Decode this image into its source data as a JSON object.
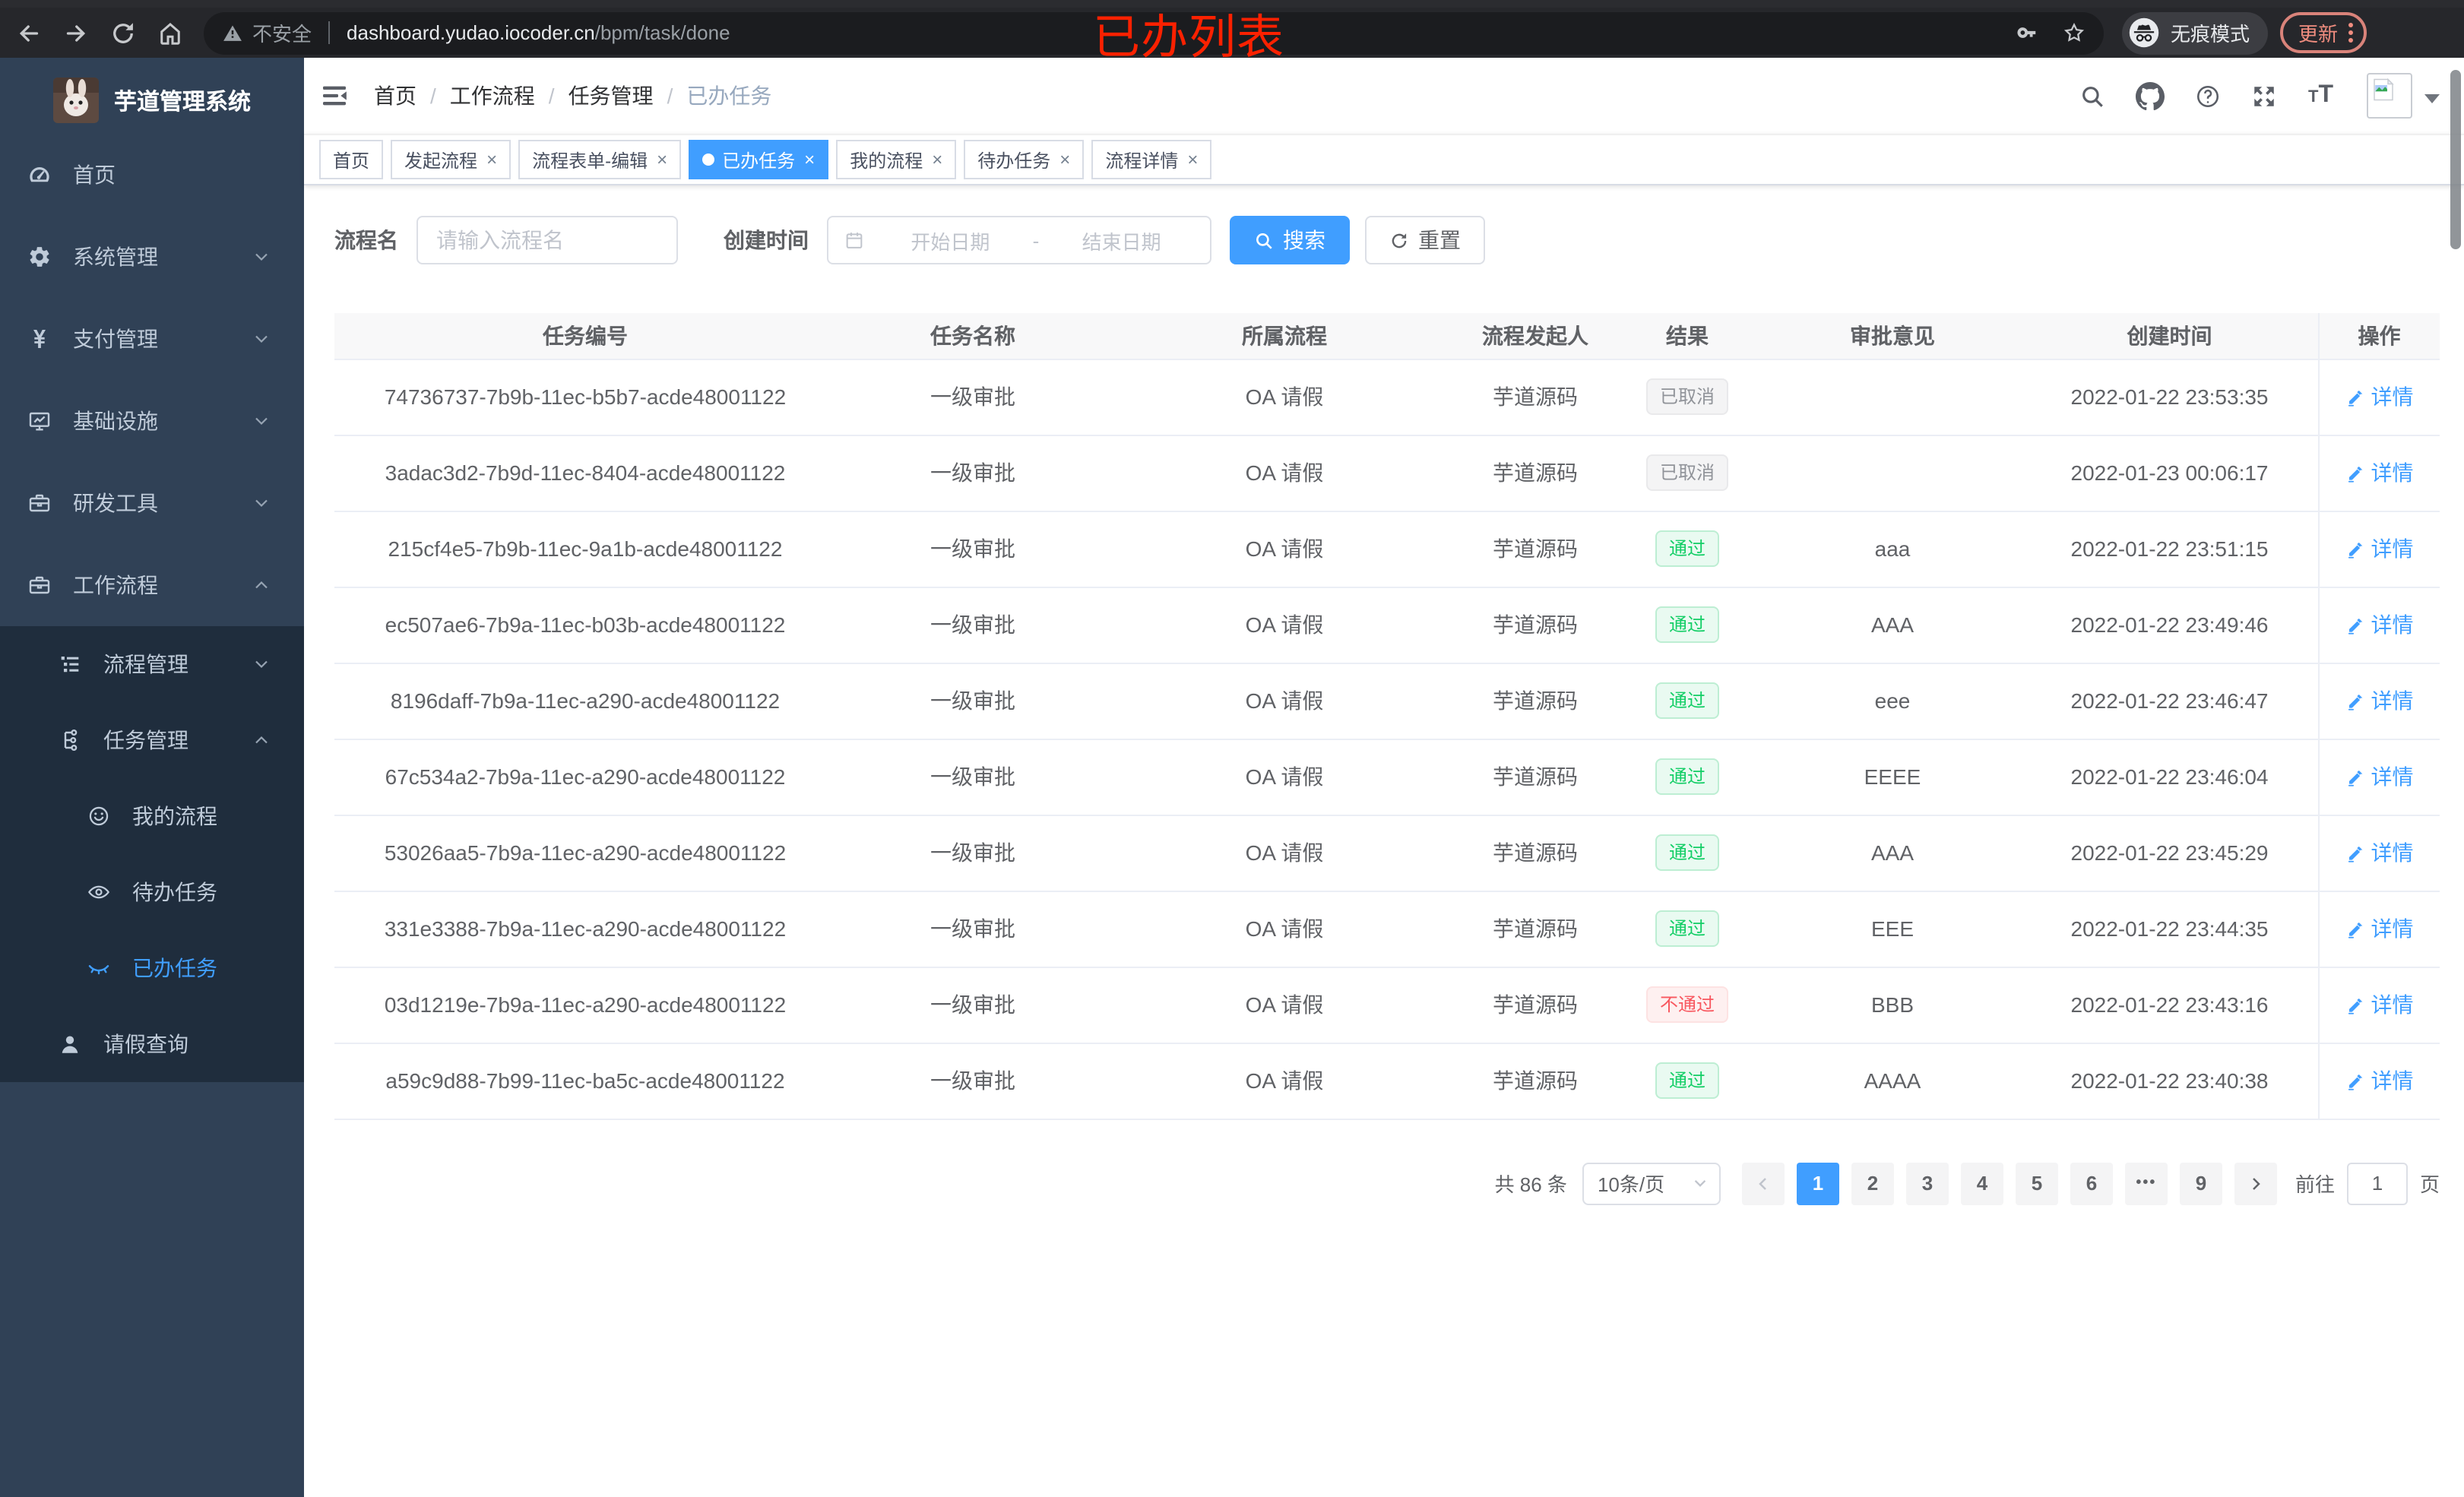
{
  "browser": {
    "security_label": "不安全",
    "url_host": "dashboard.yudao.iocoder.cn",
    "url_path": "/bpm/task/done",
    "incognito_label": "无痕模式",
    "update_label": "更新"
  },
  "annotation": {
    "title": "已办列表"
  },
  "sidebar": {
    "logo_title": "芋道管理系统",
    "menu": [
      {
        "key": "home",
        "label": "首页",
        "icon": "dashboard-icon"
      },
      {
        "key": "system",
        "label": "系统管理",
        "icon": "gear-icon",
        "expandable": true
      },
      {
        "key": "payment",
        "label": "支付管理",
        "icon": "yen-icon",
        "expandable": true
      },
      {
        "key": "infra",
        "label": "基础设施",
        "icon": "monitor-icon",
        "expandable": true
      },
      {
        "key": "devtools",
        "label": "研发工具",
        "icon": "toolbox-icon",
        "expandable": true
      },
      {
        "key": "workflow",
        "label": "工作流程",
        "icon": "briefcase-icon",
        "expandable": true,
        "expanded": true,
        "children": [
          {
            "key": "process-mgmt",
            "label": "流程管理",
            "icon": "list-tree-icon",
            "expandable": true
          },
          {
            "key": "task-mgmt",
            "label": "任务管理",
            "icon": "flow-icon",
            "expandable": true,
            "expanded": true,
            "children": [
              {
                "key": "my-process",
                "label": "我的流程",
                "icon": "face-icon"
              },
              {
                "key": "todo-task",
                "label": "待办任务",
                "icon": "eye-open-icon"
              },
              {
                "key": "done-task",
                "label": "已办任务",
                "icon": "eye-closed-icon",
                "active": true
              }
            ]
          },
          {
            "key": "leave-query",
            "label": "请假查询",
            "icon": "user-icon"
          }
        ]
      }
    ]
  },
  "breadcrumb": [
    "首页",
    "工作流程",
    "任务管理",
    "已办任务"
  ],
  "tabs": [
    {
      "label": "首页",
      "closable": false,
      "active": false
    },
    {
      "label": "发起流程",
      "closable": true,
      "active": false
    },
    {
      "label": "流程表单-编辑",
      "closable": true,
      "active": false
    },
    {
      "label": "已办任务",
      "closable": true,
      "active": true
    },
    {
      "label": "我的流程",
      "closable": true,
      "active": false
    },
    {
      "label": "待办任务",
      "closable": true,
      "active": false
    },
    {
      "label": "流程详情",
      "closable": true,
      "active": false
    }
  ],
  "filters": {
    "name_label": "流程名",
    "name_placeholder": "请输入流程名",
    "time_label": "创建时间",
    "start_placeholder": "开始日期",
    "range_separator": "-",
    "end_placeholder": "结束日期",
    "search_label": "搜索",
    "reset_label": "重置"
  },
  "table": {
    "columns": [
      "任务编号",
      "任务名称",
      "所属流程",
      "流程发起人",
      "结果",
      "审批意见",
      "创建时间",
      "操作"
    ],
    "detail_label": "详情",
    "rows": [
      {
        "id": "74736737-7b9b-11ec-b5b7-acde48001122",
        "name": "一级审批",
        "process": "OA 请假",
        "starter": "芋道源码",
        "result": "已取消",
        "result_type": "info",
        "comment": "",
        "time": "2022-01-22 23:53:35"
      },
      {
        "id": "3adac3d2-7b9d-11ec-8404-acde48001122",
        "name": "一级审批",
        "process": "OA 请假",
        "starter": "芋道源码",
        "result": "已取消",
        "result_type": "info",
        "comment": "",
        "time": "2022-01-23 00:06:17"
      },
      {
        "id": "215cf4e5-7b9b-11ec-9a1b-acde48001122",
        "name": "一级审批",
        "process": "OA 请假",
        "starter": "芋道源码",
        "result": "通过",
        "result_type": "success",
        "comment": "aaa",
        "time": "2022-01-22 23:51:15"
      },
      {
        "id": "ec507ae6-7b9a-11ec-b03b-acde48001122",
        "name": "一级审批",
        "process": "OA 请假",
        "starter": "芋道源码",
        "result": "通过",
        "result_type": "success",
        "comment": "AAA",
        "time": "2022-01-22 23:49:46"
      },
      {
        "id": "8196daff-7b9a-11ec-a290-acde48001122",
        "name": "一级审批",
        "process": "OA 请假",
        "starter": "芋道源码",
        "result": "通过",
        "result_type": "success",
        "comment": "eee",
        "time": "2022-01-22 23:46:47"
      },
      {
        "id": "67c534a2-7b9a-11ec-a290-acde48001122",
        "name": "一级审批",
        "process": "OA 请假",
        "starter": "芋道源码",
        "result": "通过",
        "result_type": "success",
        "comment": "EEEE",
        "time": "2022-01-22 23:46:04"
      },
      {
        "id": "53026aa5-7b9a-11ec-a290-acde48001122",
        "name": "一级审批",
        "process": "OA 请假",
        "starter": "芋道源码",
        "result": "通过",
        "result_type": "success",
        "comment": "AAA",
        "time": "2022-01-22 23:45:29"
      },
      {
        "id": "331e3388-7b9a-11ec-a290-acde48001122",
        "name": "一级审批",
        "process": "OA 请假",
        "starter": "芋道源码",
        "result": "通过",
        "result_type": "success",
        "comment": "EEE",
        "time": "2022-01-22 23:44:35"
      },
      {
        "id": "03d1219e-7b9a-11ec-a290-acde48001122",
        "name": "一级审批",
        "process": "OA 请假",
        "starter": "芋道源码",
        "result": "不通过",
        "result_type": "danger",
        "comment": "BBB",
        "time": "2022-01-22 23:43:16"
      },
      {
        "id": "a59c9d88-7b99-11ec-ba5c-acde48001122",
        "name": "一级审批",
        "process": "OA 请假",
        "starter": "芋道源码",
        "result": "通过",
        "result_type": "success",
        "comment": "AAAA",
        "time": "2022-01-22 23:40:38"
      }
    ]
  },
  "pagination": {
    "total_label": "共 86 条",
    "page_size": "10条/页",
    "pages": [
      "1",
      "2",
      "3",
      "4",
      "5",
      "6",
      "•••",
      "9"
    ],
    "active_page": "1",
    "goto_label": "前往",
    "goto_value": "1",
    "goto_suffix": "页"
  }
}
